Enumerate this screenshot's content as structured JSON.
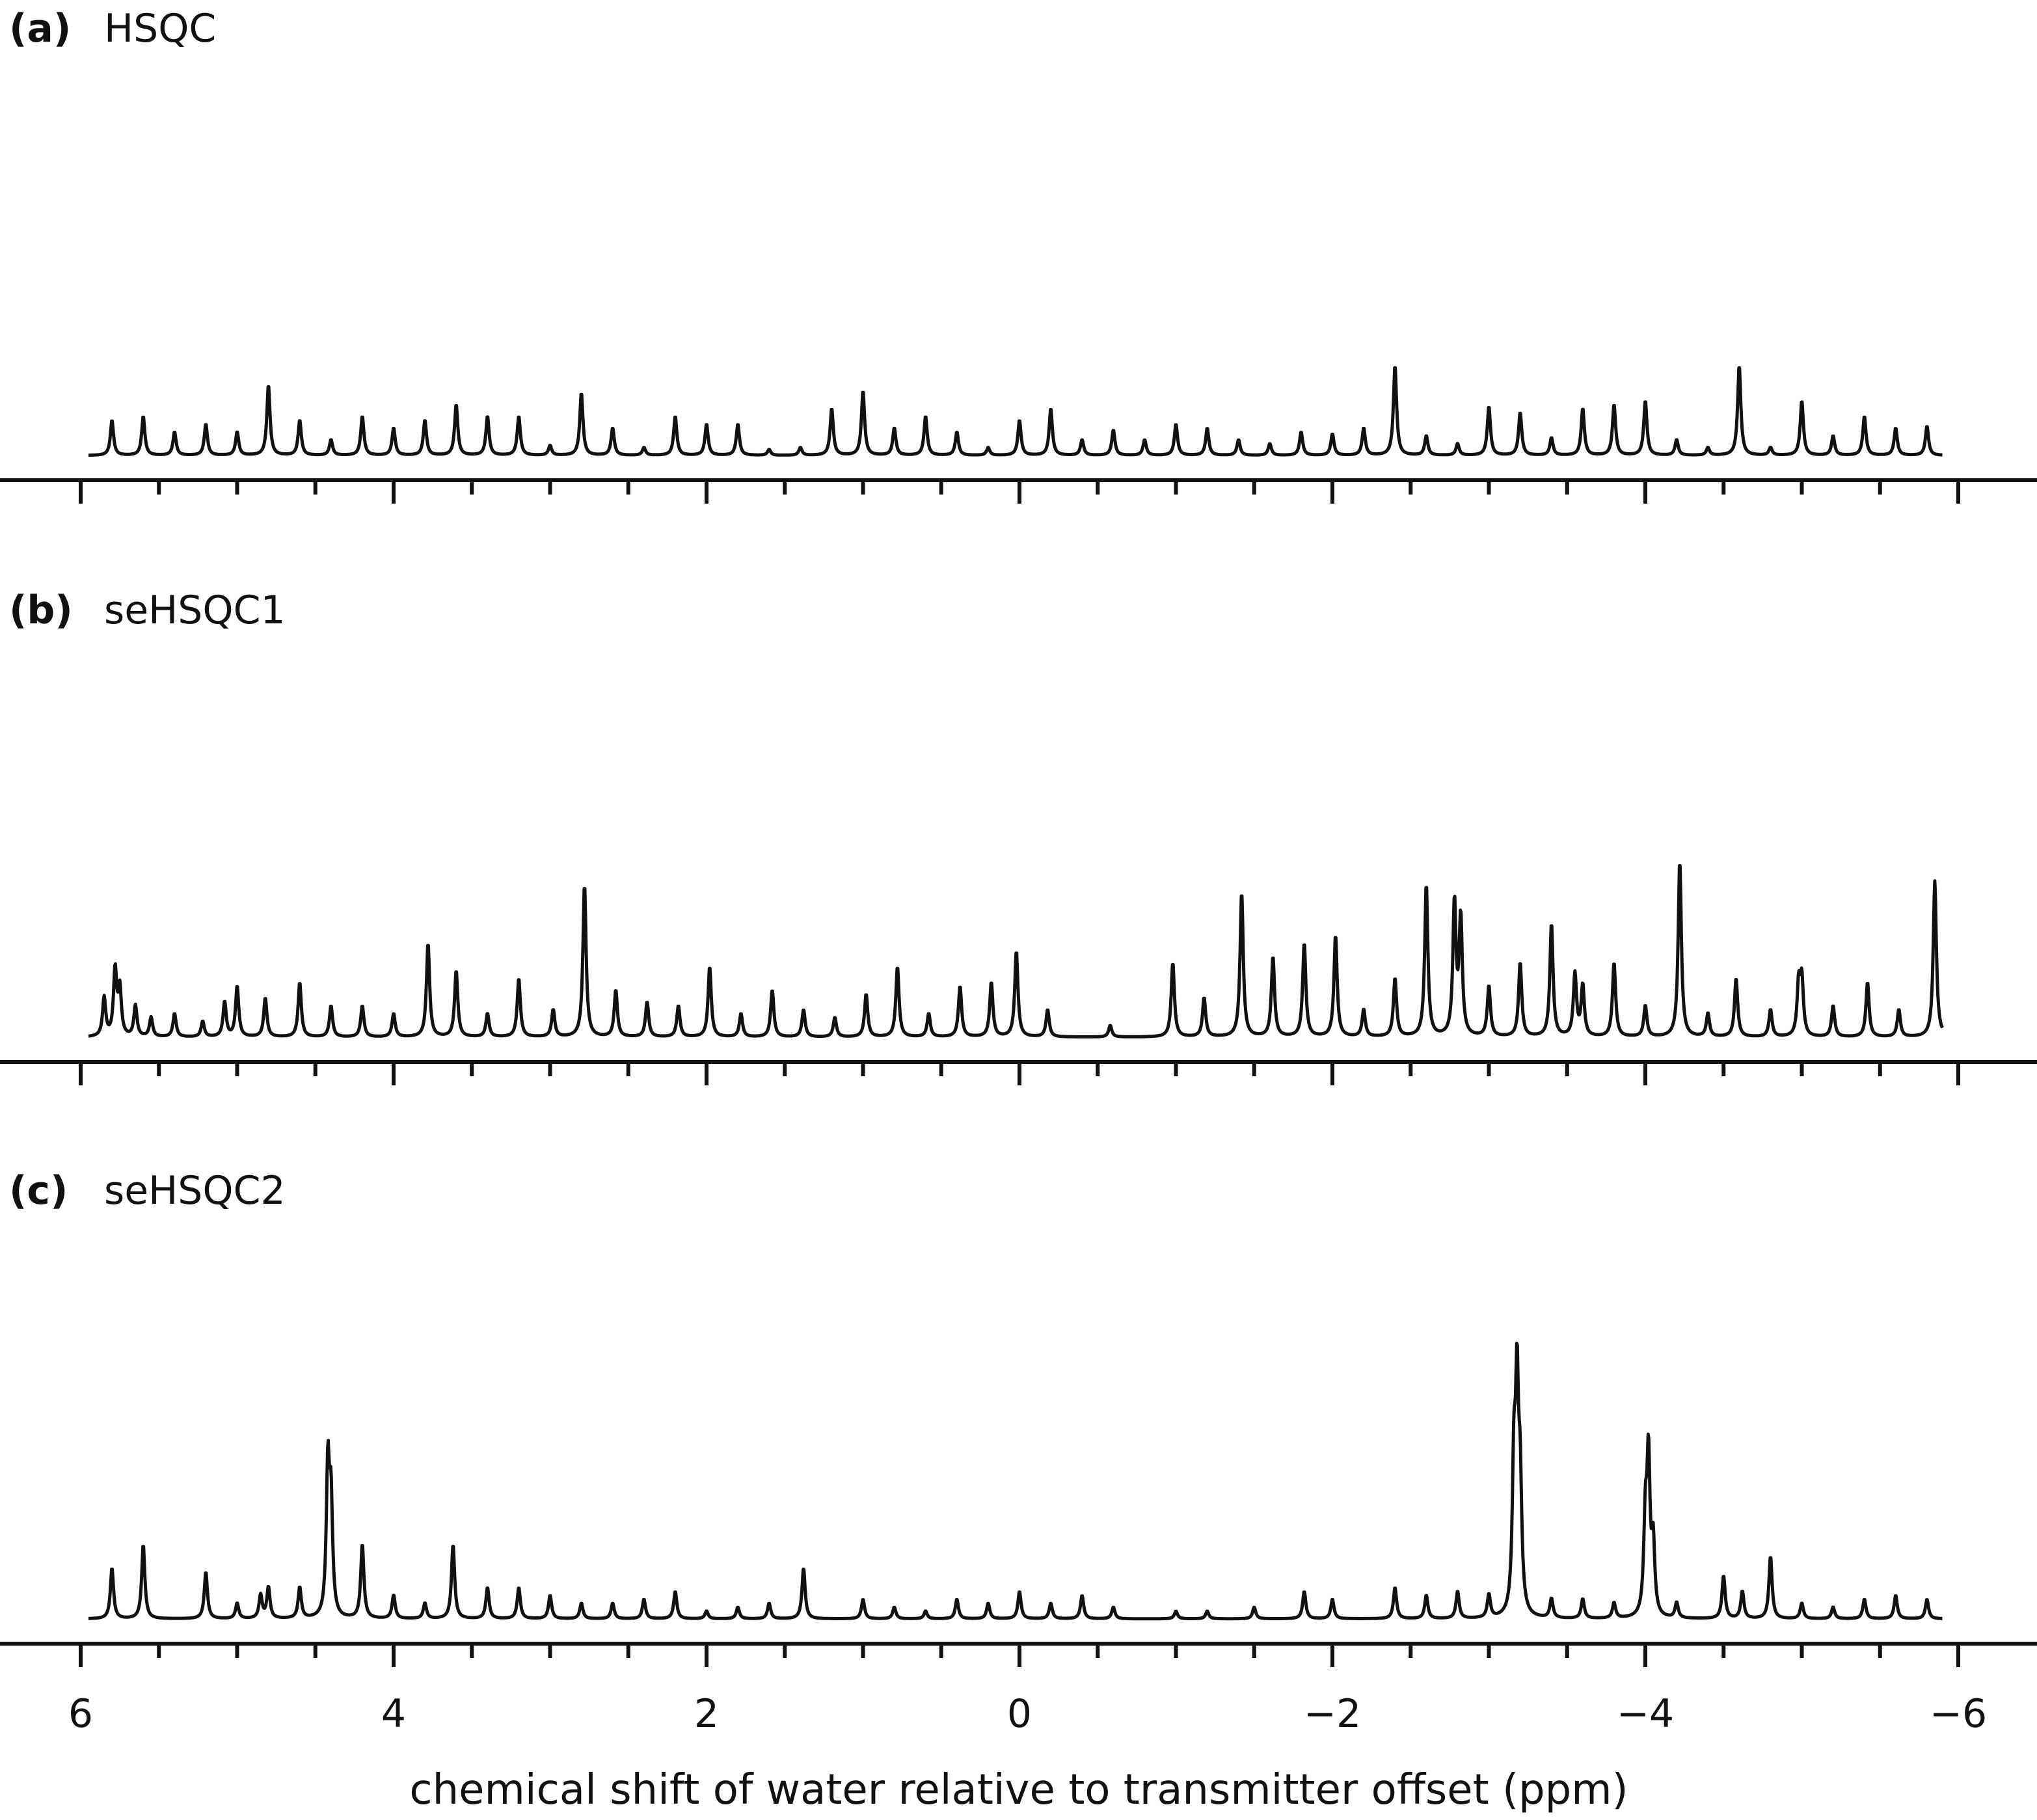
{
  "chart_data": {
    "type": "line",
    "xlabel": "chemical shift of water relative to transmitter offset (ppm)",
    "xlim": [
      6,
      -6
    ],
    "x_ticks": [
      {
        "value": 6,
        "label": "6"
      },
      {
        "value": 4,
        "label": "4"
      },
      {
        "value": 2,
        "label": "2"
      },
      {
        "value": 0,
        "label": "0"
      },
      {
        "value": -2,
        "label": "−2"
      },
      {
        "value": -4,
        "label": "−4"
      },
      {
        "value": -6,
        "label": "−6"
      }
    ],
    "panels": [
      {
        "letter": "(a)",
        "name": "HSQC",
        "peaks": [
          [
            5.8,
            0.18
          ],
          [
            5.6,
            0.2
          ],
          [
            5.4,
            0.12
          ],
          [
            5.2,
            0.16
          ],
          [
            5.0,
            0.12
          ],
          [
            4.8,
            0.36
          ],
          [
            4.6,
            0.18
          ],
          [
            4.4,
            0.08
          ],
          [
            4.2,
            0.2
          ],
          [
            4.0,
            0.14
          ],
          [
            3.8,
            0.18
          ],
          [
            3.6,
            0.26
          ],
          [
            3.4,
            0.2
          ],
          [
            3.2,
            0.2
          ],
          [
            3.0,
            0.05
          ],
          [
            2.8,
            0.32
          ],
          [
            2.6,
            0.14
          ],
          [
            2.4,
            0.04
          ],
          [
            2.2,
            0.2
          ],
          [
            2.0,
            0.16
          ],
          [
            1.8,
            0.16
          ],
          [
            1.6,
            0.03
          ],
          [
            1.4,
            0.04
          ],
          [
            1.2,
            0.24
          ],
          [
            1.0,
            0.33
          ],
          [
            0.8,
            0.14
          ],
          [
            0.6,
            0.2
          ],
          [
            0.4,
            0.12
          ],
          [
            0.2,
            0.04
          ],
          [
            0.0,
            0.18
          ],
          [
            -0.2,
            0.24
          ],
          [
            -0.4,
            0.08
          ],
          [
            -0.6,
            0.13
          ],
          [
            -0.8,
            0.08
          ],
          [
            -1.0,
            0.16
          ],
          [
            -1.2,
            0.14
          ],
          [
            -1.4,
            0.08
          ],
          [
            -1.6,
            0.06
          ],
          [
            -1.8,
            0.12
          ],
          [
            -2.0,
            0.11
          ],
          [
            -2.2,
            0.14
          ],
          [
            -2.4,
            0.46
          ],
          [
            -2.6,
            0.1
          ],
          [
            -2.8,
            0.06
          ],
          [
            -3.0,
            0.25
          ],
          [
            -3.2,
            0.22
          ],
          [
            -3.4,
            0.09
          ],
          [
            -3.6,
            0.24
          ],
          [
            -3.8,
            0.26
          ],
          [
            -4.0,
            0.28
          ],
          [
            -4.2,
            0.08
          ],
          [
            -4.4,
            0.04
          ],
          [
            -4.6,
            0.46
          ],
          [
            -4.8,
            0.04
          ],
          [
            -5.0,
            0.28
          ],
          [
            -5.2,
            0.1
          ],
          [
            -5.4,
            0.2
          ],
          [
            -5.6,
            0.14
          ],
          [
            -5.8,
            0.15
          ]
        ]
      },
      {
        "letter": "(b)",
        "name": "seHSQC1",
        "peaks": [
          [
            5.85,
            0.2
          ],
          [
            5.78,
            0.34
          ],
          [
            5.75,
            0.24
          ],
          [
            5.65,
            0.16
          ],
          [
            5.55,
            0.1
          ],
          [
            5.4,
            0.12
          ],
          [
            5.22,
            0.08
          ],
          [
            5.08,
            0.18
          ],
          [
            5.0,
            0.26
          ],
          [
            4.82,
            0.2
          ],
          [
            4.6,
            0.28
          ],
          [
            4.4,
            0.16
          ],
          [
            4.2,
            0.16
          ],
          [
            4.0,
            0.12
          ],
          [
            3.78,
            0.48
          ],
          [
            3.6,
            0.34
          ],
          [
            3.4,
            0.12
          ],
          [
            3.2,
            0.3
          ],
          [
            2.98,
            0.14
          ],
          [
            2.78,
            0.78
          ],
          [
            2.58,
            0.24
          ],
          [
            2.38,
            0.18
          ],
          [
            2.18,
            0.16
          ],
          [
            1.98,
            0.36
          ],
          [
            1.78,
            0.12
          ],
          [
            1.58,
            0.24
          ],
          [
            1.38,
            0.14
          ],
          [
            1.18,
            0.1
          ],
          [
            0.98,
            0.22
          ],
          [
            0.78,
            0.36
          ],
          [
            0.58,
            0.12
          ],
          [
            0.38,
            0.26
          ],
          [
            0.18,
            0.28
          ],
          [
            0.02,
            0.44
          ],
          [
            -0.18,
            0.14
          ],
          [
            -0.58,
            0.06
          ],
          [
            -0.98,
            0.38
          ],
          [
            -1.18,
            0.2
          ],
          [
            -1.42,
            0.74
          ],
          [
            -1.62,
            0.41
          ],
          [
            -1.82,
            0.48
          ],
          [
            -2.02,
            0.52
          ],
          [
            -2.2,
            0.14
          ],
          [
            -2.4,
            0.3
          ],
          [
            -2.6,
            0.78
          ],
          [
            -2.78,
            0.68
          ],
          [
            -2.82,
            0.6
          ],
          [
            -3.0,
            0.26
          ],
          [
            -3.2,
            0.38
          ],
          [
            -3.4,
            0.58
          ],
          [
            -3.55,
            0.32
          ],
          [
            -3.6,
            0.26
          ],
          [
            -3.8,
            0.38
          ],
          [
            -4.0,
            0.16
          ],
          [
            -4.22,
            0.9
          ],
          [
            -4.4,
            0.12
          ],
          [
            -4.58,
            0.3
          ],
          [
            -4.8,
            0.14
          ],
          [
            -4.98,
            0.26
          ],
          [
            -5.0,
            0.28
          ],
          [
            -5.2,
            0.16
          ],
          [
            -5.42,
            0.28
          ],
          [
            -5.62,
            0.14
          ],
          [
            -5.85,
            0.8
          ]
        ]
      },
      {
        "letter": "(c)",
        "name": "seHSQC2",
        "peaks": [
          [
            5.8,
            0.26
          ],
          [
            5.6,
            0.38
          ],
          [
            5.2,
            0.24
          ],
          [
            5.0,
            0.08
          ],
          [
            4.85,
            0.12
          ],
          [
            4.8,
            0.16
          ],
          [
            4.6,
            0.16
          ],
          [
            4.42,
            0.76
          ],
          [
            4.4,
            0.56
          ],
          [
            4.2,
            0.38
          ],
          [
            4.0,
            0.12
          ],
          [
            3.8,
            0.08
          ],
          [
            3.62,
            0.38
          ],
          [
            3.4,
            0.16
          ],
          [
            3.2,
            0.16
          ],
          [
            3.0,
            0.12
          ],
          [
            2.8,
            0.08
          ],
          [
            2.6,
            0.08
          ],
          [
            2.4,
            0.1
          ],
          [
            2.2,
            0.14
          ],
          [
            2.0,
            0.04
          ],
          [
            1.8,
            0.06
          ],
          [
            1.6,
            0.08
          ],
          [
            1.38,
            0.26
          ],
          [
            1.0,
            0.1
          ],
          [
            0.8,
            0.06
          ],
          [
            0.6,
            0.04
          ],
          [
            0.4,
            0.1
          ],
          [
            0.2,
            0.08
          ],
          [
            0.0,
            0.14
          ],
          [
            -0.2,
            0.08
          ],
          [
            -0.4,
            0.12
          ],
          [
            -0.6,
            0.06
          ],
          [
            -1.0,
            0.04
          ],
          [
            -1.2,
            0.04
          ],
          [
            -1.5,
            0.06
          ],
          [
            -1.82,
            0.14
          ],
          [
            -2.0,
            0.1
          ],
          [
            -2.4,
            0.16
          ],
          [
            -2.6,
            0.12
          ],
          [
            -2.8,
            0.14
          ],
          [
            -3.0,
            0.12
          ],
          [
            -3.18,
            1.08
          ],
          [
            -3.16,
            0.72
          ],
          [
            -3.2,
            0.6
          ],
          [
            -3.4,
            0.1
          ],
          [
            -3.6,
            0.1
          ],
          [
            -3.8,
            0.08
          ],
          [
            -4.02,
            0.78
          ],
          [
            -4.0,
            0.46
          ],
          [
            -4.05,
            0.36
          ],
          [
            -4.2,
            0.08
          ],
          [
            -4.5,
            0.22
          ],
          [
            -4.62,
            0.14
          ],
          [
            -4.8,
            0.32
          ],
          [
            -5.0,
            0.08
          ],
          [
            -5.2,
            0.06
          ],
          [
            -5.4,
            0.1
          ],
          [
            -5.6,
            0.12
          ],
          [
            -5.8,
            0.1
          ]
        ]
      }
    ]
  }
}
